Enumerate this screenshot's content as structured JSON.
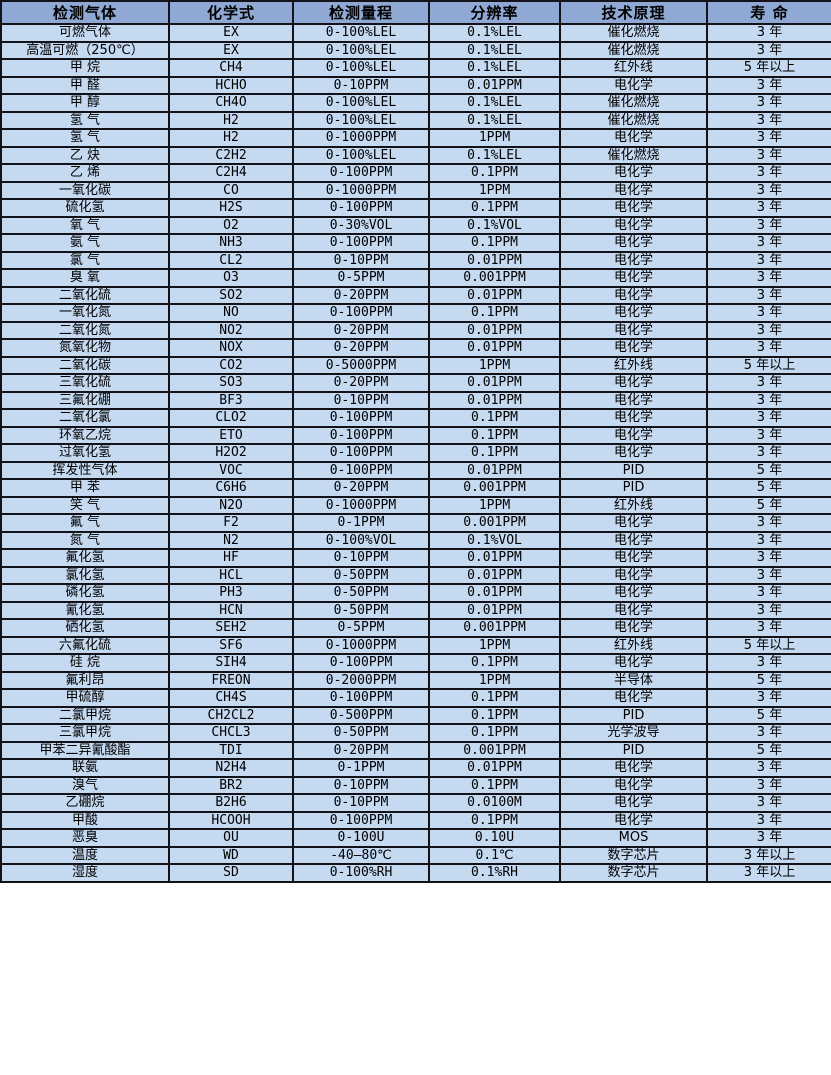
{
  "colors": {
    "header_bg": "#8fa8d4",
    "row_bg": "#c5d9f1",
    "border": "#121218",
    "text": "#000000"
  },
  "chart_data": {
    "type": "table",
    "columns": [
      "检测气体",
      "化学式",
      "检测量程",
      "分辨率",
      "技术原理",
      "寿 命"
    ],
    "rows": [
      [
        "可燃气体",
        "EX",
        "0-100%LEL",
        "0.1%LEL",
        "催化燃烧",
        "3 年"
      ],
      [
        "高温可燃（250℃）",
        "EX",
        "0-100%LEL",
        "0.1%LEL",
        "催化燃烧",
        "3 年"
      ],
      [
        "甲 烷",
        "CH4",
        "0-100%LEL",
        "0.1%LEL",
        "红外线",
        "5 年以上"
      ],
      [
        "甲 醛",
        "HCHO",
        "0-10PPM",
        "0.01PPM",
        "电化学",
        "3 年"
      ],
      [
        "甲 醇",
        "CH4O",
        "0-100%LEL",
        "0.1%LEL",
        "催化燃烧",
        "3 年"
      ],
      [
        "氢 气",
        "H2",
        "0-100%LEL",
        "0.1%LEL",
        "催化燃烧",
        "3 年"
      ],
      [
        "氢 气",
        "H2",
        "0-1000PPM",
        "1PPM",
        "电化学",
        "3 年"
      ],
      [
        "乙 炔",
        "C2H2",
        "0-100%LEL",
        "0.1%LEL",
        "催化燃烧",
        "3 年"
      ],
      [
        "乙 烯",
        "C2H4",
        "0-100PPM",
        "0.1PPM",
        "电化学",
        "3 年"
      ],
      [
        "一氧化碳",
        "CO",
        "0-1000PPM",
        "1PPM",
        "电化学",
        "3 年"
      ],
      [
        "硫化氢",
        "H2S",
        "0-100PPM",
        "0.1PPM",
        "电化学",
        "3 年"
      ],
      [
        "氧 气",
        "O2",
        "0-30%VOL",
        "0.1%VOL",
        "电化学",
        "3 年"
      ],
      [
        "氨 气",
        "NH3",
        "0-100PPM",
        "0.1PPM",
        "电化学",
        "3 年"
      ],
      [
        "氯 气",
        "CL2",
        "0-10PPM",
        "0.01PPM",
        "电化学",
        "3 年"
      ],
      [
        "臭 氧",
        "O3",
        "0-5PPM",
        "0.001PPM",
        "电化学",
        "3 年"
      ],
      [
        "二氧化硫",
        "SO2",
        "0-20PPM",
        "0.01PPM",
        "电化学",
        "3 年"
      ],
      [
        "一氧化氮",
        "NO",
        "0-100PPM",
        "0.1PPM",
        "电化学",
        "3 年"
      ],
      [
        "二氧化氮",
        "NO2",
        "0-20PPM",
        "0.01PPM",
        "电化学",
        "3 年"
      ],
      [
        "氮氧化物",
        "NOX",
        "0-20PPM",
        "0.01PPM",
        "电化学",
        "3 年"
      ],
      [
        "二氧化碳",
        "CO2",
        "0-5000PPM",
        "1PPM",
        "红外线",
        "5 年以上"
      ],
      [
        "三氧化硫",
        "SO3",
        "0-20PPM",
        "0.01PPM",
        "电化学",
        "3 年"
      ],
      [
        "三氟化硼",
        "BF3",
        "0-10PPM",
        "0.01PPM",
        "电化学",
        "3 年"
      ],
      [
        "二氧化氯",
        "CLO2",
        "0-100PPM",
        "0.1PPM",
        "电化学",
        "3 年"
      ],
      [
        "环氧乙烷",
        "ETO",
        "0-100PPM",
        "0.1PPM",
        "电化学",
        "3 年"
      ],
      [
        "过氧化氢",
        "H2O2",
        "0-100PPM",
        "0.1PPM",
        "电化学",
        "3 年"
      ],
      [
        "挥发性气体",
        "VOC",
        "0-100PPM",
        "0.01PPM",
        "PID",
        "5 年"
      ],
      [
        "甲 苯",
        "C6H6",
        "0-20PPM",
        "0.001PPM",
        "PID",
        "5 年"
      ],
      [
        "笑 气",
        "N2O",
        "0-1000PPM",
        "1PPM",
        "红外线",
        "5 年"
      ],
      [
        "氟 气",
        "F2",
        "0-1PPM",
        "0.001PPM",
        "电化学",
        "3 年"
      ],
      [
        "氮 气",
        "N2",
        "0-100%VOL",
        "0.1%VOL",
        "电化学",
        "3 年"
      ],
      [
        "氟化氢",
        "HF",
        "0-10PPM",
        "0.01PPM",
        "电化学",
        "3 年"
      ],
      [
        "氯化氢",
        "HCL",
        "0-50PPM",
        "0.01PPM",
        "电化学",
        "3 年"
      ],
      [
        "磷化氢",
        "PH3",
        "0-50PPM",
        "0.01PPM",
        "电化学",
        "3 年"
      ],
      [
        "氰化氢",
        "HCN",
        "0-50PPM",
        "0.01PPM",
        "电化学",
        "3 年"
      ],
      [
        "硒化氢",
        "SEH2",
        "0-5PPM",
        "0.001PPM",
        "电化学",
        "3 年"
      ],
      [
        "六氟化硫",
        "SF6",
        "0-1000PPM",
        "1PPM",
        "红外线",
        "5 年以上"
      ],
      [
        "硅 烷",
        "SIH4",
        "0-100PPM",
        "0.1PPM",
        "电化学",
        "3 年"
      ],
      [
        "氟利昂",
        "FREON",
        "0-2000PPM",
        "1PPM",
        "半导体",
        "5 年"
      ],
      [
        "甲硫醇",
        "CH4S",
        "0-100PPM",
        "0.1PPM",
        "电化学",
        "3 年"
      ],
      [
        "二氯甲烷",
        "CH2CL2",
        "0-500PPM",
        "0.1PPM",
        "PID",
        "5 年"
      ],
      [
        "三氯甲烷",
        "CHCL3",
        "0-50PPM",
        "0.1PPM",
        "光学波导",
        "3 年"
      ],
      [
        "甲苯二异氰酸酯",
        "TDI",
        "0-20PPM",
        "0.001PPM",
        "PID",
        "5 年"
      ],
      [
        "联氨",
        "N2H4",
        "0-1PPM",
        "0.01PPM",
        "电化学",
        "3 年"
      ],
      [
        "溴气",
        "BR2",
        "0-10PPM",
        "0.1PPM",
        "电化学",
        "3 年"
      ],
      [
        "乙硼烷",
        "B2H6",
        "0-10PPM",
        "0.0100M",
        "电化学",
        "3 年"
      ],
      [
        "甲酸",
        "HCOOH",
        "0-100PPM",
        "0.1PPM",
        "电化学",
        "3 年"
      ],
      [
        "恶臭",
        "OU",
        "0-100U",
        "0.10U",
        "MOS",
        "3 年"
      ],
      [
        "温度",
        "WD",
        "-40—80℃",
        "0.1℃",
        "数字芯片",
        "3 年以上"
      ],
      [
        "湿度",
        "SD",
        "0-100%RH",
        "0.1%RH",
        "数字芯片",
        "3 年以上"
      ]
    ]
  }
}
